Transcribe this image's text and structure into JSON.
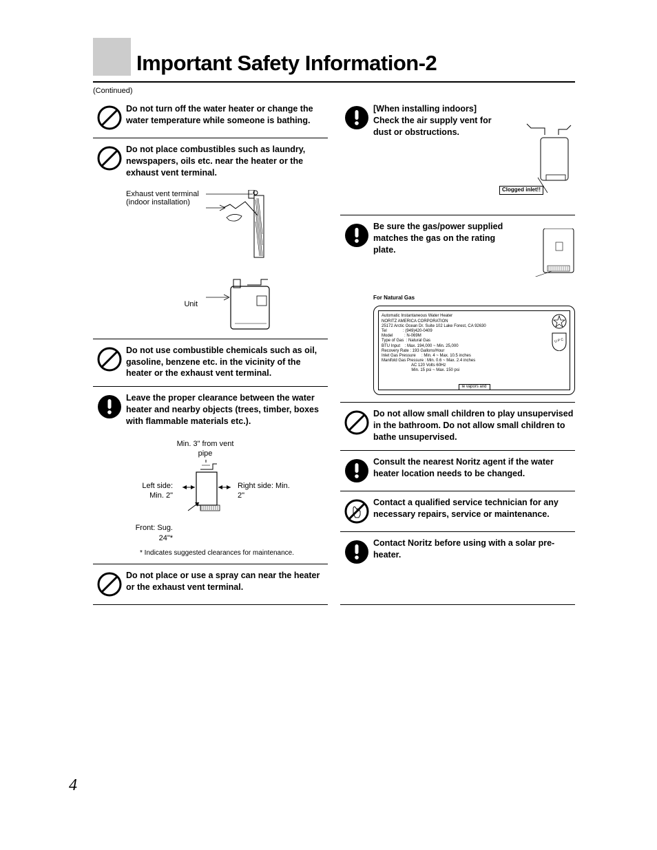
{
  "title": "Important Safety Information-2",
  "continued": "(Continued)",
  "page_number": "4",
  "colors": {
    "gray_block": "#cccccc",
    "text": "#000000",
    "rule": "#000000"
  },
  "left_items": [
    {
      "icon": "prohibit",
      "text": "Do not turn off the water heater or change the water temperature while someone is bathing."
    },
    {
      "icon": "prohibit",
      "text": "Do not place combustibles such as laundry, newspapers, oils etc. near the heater or the exhaust vent terminal."
    },
    {
      "icon": "prohibit",
      "text": "Do not use combustible chemicals such as oil, gasoline, benzene etc. in the vicinity of the heater or the exhaust vent terminal."
    },
    {
      "icon": "warn",
      "text": "Leave the proper clearance between the water heater and nearby objects (trees, timber, boxes with flammable materials etc.)."
    },
    {
      "icon": "prohibit",
      "text": "Do not place or use a spray can near the heater or the exhaust vent terminal."
    }
  ],
  "exhaust_diagram": {
    "label_exhaust": "Exhaust vent terminal (indoor installation)",
    "label_unit": "Unit"
  },
  "clearance_diagram": {
    "top": "Min. 3\" from vent pipe",
    "left": "Left side: Min. 2\"",
    "right": "Right side: Min. 2\"",
    "front": "Front: Sug. 24\"*",
    "footnote": "* Indicates suggested clearances for maintenance."
  },
  "right_items": [
    {
      "icon": "warn",
      "text": "[When installing indoors] Check the air supply vent for dust or obstructions.",
      "clogged_label": "Clogged inlet!!"
    },
    {
      "icon": "warn",
      "text": "Be sure the gas/power supplied matches the gas on the rating plate."
    },
    {
      "icon": "prohibit",
      "text": "Do not allow small children to play unsupervised in the bathroom. Do not allow small children to bathe unsupervised."
    },
    {
      "icon": "warn",
      "text": "Consult the nearest Noritz agent if the water heater location needs to be changed."
    },
    {
      "icon": "prohibit-hand",
      "text": "Contact a qualified service technician for any necessary repairs, service or maintenance."
    },
    {
      "icon": "warn",
      "text": "Contact Noritz before using with a solar pre-heater."
    }
  ],
  "rating_plate": {
    "heading": "For Natural Gas",
    "lines": [
      "Automatic Instantaneous Water Heater",
      "NORITZ AMERICA CORPORATION",
      "25172 Arctic Ocean Dr. Suite 102 Lake Forest, CA 92630",
      "Tel              : (949)420-0409",
      "Model          : N-069M",
      "Type of Gas  : Natural Gas",
      "BTU Input    : Max. 194,000 ~ Min. 25,000",
      "Recovery Rate : 193 Gallons/Hour",
      "Inlet Gas Pressure     : Min. 4 ~ Max. 10.5 inches",
      "Manifold Gas Pressure : Min. 0.6 ~ Max. 2.4 inches",
      "                          AC 120 Volts 60Hz",
      "                          Min. 15 psi ~ Max. 150 psi"
    ],
    "truncated": "le vapors and"
  }
}
